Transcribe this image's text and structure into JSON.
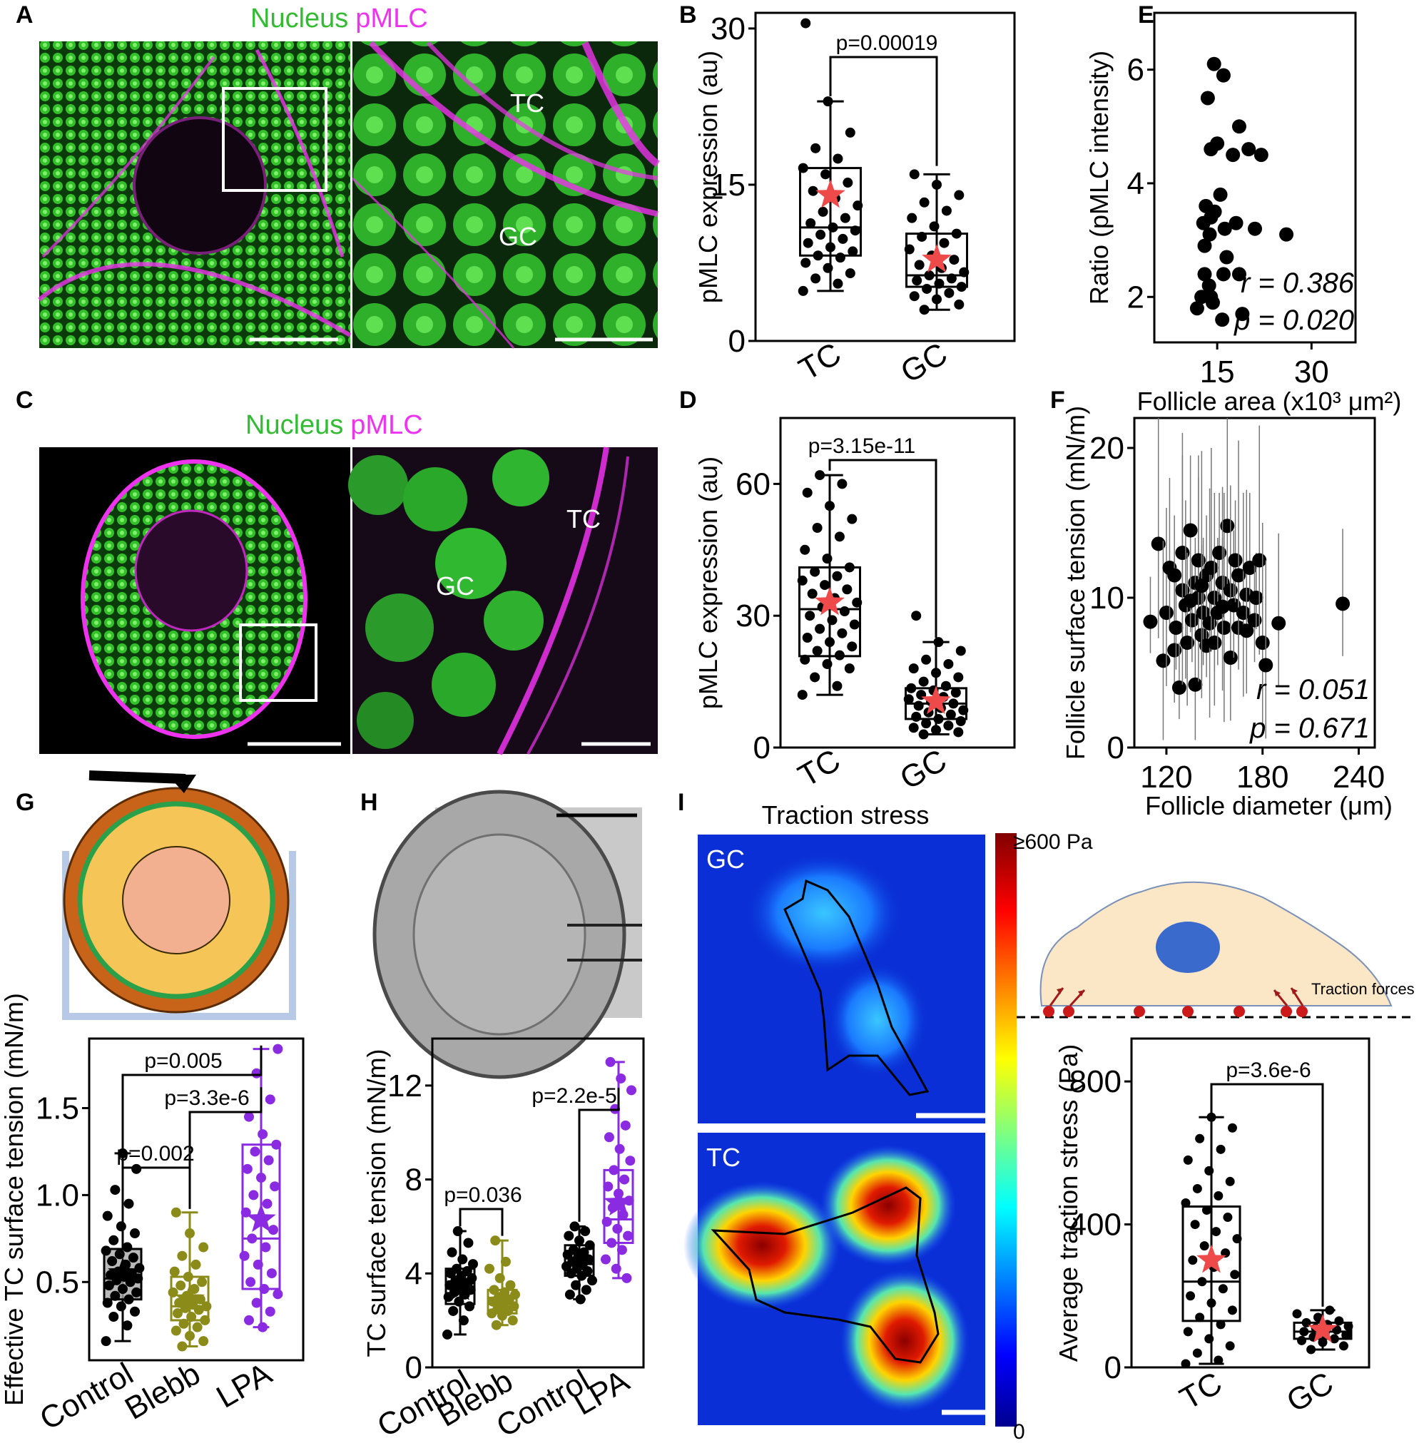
{
  "panel_letters": [
    "A",
    "B",
    "C",
    "D",
    "E",
    "F",
    "G",
    "H",
    "I"
  ],
  "micrographs": {
    "a_title_nucleus": "Nucleus",
    "a_title_pmlc": "pMLC",
    "c_title_nucleus": "Nucleus",
    "c_title_pmlc": "pMLC",
    "a_zoom_tc": "TC",
    "a_zoom_gc": "GC",
    "c_zoom_tc": "TC",
    "c_zoom_gc": "GC",
    "i_title": "Traction stress",
    "i_gc": "GC",
    "i_tc": "TC",
    "colorbar_max": "≥600 Pa",
    "colorbar_min": "0",
    "schematic_label": "Traction forces",
    "nucleus_color": "#33cc33",
    "pmlc_color": "#ee33ee"
  },
  "chart_data": [
    {
      "id": "B",
      "type": "box",
      "categories": [
        "TC",
        "GC"
      ],
      "ylabel": "pMLC expression (au)",
      "ylim": [
        0,
        31.5
      ],
      "yticks": [
        0,
        15,
        30
      ],
      "boxes": [
        {
          "q1": 8.2,
          "median": 10.9,
          "q3": 16.6,
          "min": 4.8,
          "max": 23.0,
          "mean": 14.0,
          "color": "#000000",
          "points": [
            4.8,
            5.5,
            6,
            6.5,
            7,
            7.5,
            8,
            8.2,
            8.6,
            9,
            9.4,
            9.8,
            10.2,
            10.6,
            10.9,
            11.3,
            11.8,
            12.4,
            13,
            13.7,
            14.4,
            15.2,
            16,
            16.6,
            17.5,
            18.5,
            20,
            23,
            30.5
          ]
        },
        {
          "q1": 5.2,
          "median": 6.3,
          "q3": 10.3,
          "min": 3.0,
          "max": 16.0,
          "mean": 7.8,
          "color": "#000000",
          "points": [
            3,
            3.5,
            4,
            4.3,
            4.6,
            5,
            5.2,
            5.5,
            5.8,
            6,
            6.3,
            6.6,
            7,
            7.3,
            7.8,
            8.2,
            8.8,
            9.4,
            10,
            10.3,
            11,
            11.8,
            12.5,
            13.3,
            14,
            15,
            16
          ]
        }
      ],
      "comparisons": [
        {
          "between": [
            "TC",
            "GC"
          ],
          "label": "p=0.00019"
        }
      ]
    },
    {
      "id": "D",
      "type": "box",
      "categories": [
        "TC",
        "GC"
      ],
      "ylabel": "pMLC expression (au)",
      "ylim": [
        0,
        75
      ],
      "yticks": [
        0,
        30,
        60
      ],
      "boxes": [
        {
          "q1": 20.8,
          "median": 31.5,
          "q3": 41.0,
          "min": 12.0,
          "max": 62.0,
          "mean": 33.0,
          "color": "#000000",
          "points": [
            12,
            14,
            16,
            18,
            19,
            20,
            21,
            22,
            23,
            24,
            25,
            26,
            27,
            28,
            29,
            30,
            31,
            32,
            33,
            34,
            35,
            36,
            37,
            38,
            39,
            40,
            41,
            43,
            45,
            48,
            50,
            52,
            55,
            58,
            60,
            62
          ]
        },
        {
          "q1": 6.5,
          "median": 10.0,
          "q3": 13.5,
          "min": 3.0,
          "max": 24.0,
          "mean": 10.5,
          "color": "#000000",
          "points": [
            3,
            3.5,
            4,
            4.5,
            5,
            5.5,
            6,
            6.5,
            7,
            7.5,
            8,
            8.5,
            9,
            9.5,
            10,
            10.5,
            11,
            11.5,
            12,
            12.5,
            13,
            13.5,
            14,
            15,
            16,
            17,
            18,
            19,
            20,
            22,
            24,
            30
          ]
        }
      ],
      "comparisons": [
        {
          "between": [
            "TC",
            "GC"
          ],
          "label": "p=3.15e-11"
        }
      ]
    },
    {
      "id": "E",
      "type": "scatter",
      "xlabel": "Follicle area (x10³ μm²)",
      "ylabel": "Ratio (pMLC intensity)",
      "xlim": [
        5,
        37
      ],
      "ylim": [
        1.2,
        7
      ],
      "xticks": [
        15,
        30
      ],
      "yticks": [
        2,
        4,
        6
      ],
      "points": [
        [
          14.5,
          6.1
        ],
        [
          16,
          5.9
        ],
        [
          13.5,
          5.5
        ],
        [
          18.5,
          5.0
        ],
        [
          17.5,
          4.5
        ],
        [
          20,
          4.6
        ],
        [
          22,
          4.5
        ],
        [
          14,
          4.6
        ],
        [
          15,
          4.7
        ],
        [
          13.2,
          3.6
        ],
        [
          14,
          3.4
        ],
        [
          15.5,
          3.8
        ],
        [
          12.8,
          3.3
        ],
        [
          13.8,
          3.1
        ],
        [
          16.2,
          3.2
        ],
        [
          18,
          3.3
        ],
        [
          18.5,
          2.4
        ],
        [
          16.5,
          2.7
        ],
        [
          14.6,
          3.5
        ],
        [
          13,
          2.9
        ],
        [
          13,
          2.4
        ],
        [
          12.5,
          2.0
        ],
        [
          13.7,
          2.2
        ],
        [
          14,
          2.0
        ],
        [
          14.3,
          1.9
        ],
        [
          11.8,
          1.8
        ],
        [
          15.8,
          1.6
        ],
        [
          19,
          1.7
        ],
        [
          16,
          2.4
        ],
        [
          26,
          3.1
        ],
        [
          21,
          3.2
        ]
      ],
      "annotations": [
        "r = 0.386",
        "p = 0.020"
      ]
    },
    {
      "id": "F",
      "type": "scatter",
      "xlabel": "Follicle diameter (μm)",
      "ylabel": "Follicle surface tension (mN/m)",
      "xlim": [
        100,
        250
      ],
      "ylim": [
        0,
        22
      ],
      "xticks": [
        120,
        180,
        240
      ],
      "yticks": [
        0,
        10,
        20
      ],
      "error_bars": true,
      "points": [
        [
          110,
          8.4
        ],
        [
          115,
          13.6
        ],
        [
          118,
          5.8
        ],
        [
          120,
          9.0
        ],
        [
          122,
          12.0
        ],
        [
          125,
          6.5
        ],
        [
          126,
          8.0
        ],
        [
          128,
          4.0
        ],
        [
          130,
          10.5
        ],
        [
          130,
          13.0
        ],
        [
          132,
          9.5
        ],
        [
          133,
          7.0
        ],
        [
          135,
          14.5
        ],
        [
          136,
          8.5
        ],
        [
          138,
          11.0
        ],
        [
          138,
          4.2
        ],
        [
          140,
          10.0
        ],
        [
          140,
          12.5
        ],
        [
          142,
          7.5
        ],
        [
          143,
          9.0
        ],
        [
          145,
          11.5
        ],
        [
          145,
          6.8
        ],
        [
          147,
          8.3
        ],
        [
          148,
          12.0
        ],
        [
          150,
          10.0
        ],
        [
          150,
          7.0
        ],
        [
          152,
          9.0
        ],
        [
          153,
          13.0
        ],
        [
          155,
          11.0
        ],
        [
          156,
          8.0
        ],
        [
          158,
          14.8
        ],
        [
          160,
          10.5
        ],
        [
          160,
          6.0
        ],
        [
          162,
          9.5
        ],
        [
          163,
          12.5
        ],
        [
          165,
          8.0
        ],
        [
          165,
          11.5
        ],
        [
          168,
          9.0
        ],
        [
          170,
          10.2
        ],
        [
          170,
          7.8
        ],
        [
          172,
          12.0
        ],
        [
          175,
          8.5
        ],
        [
          176,
          10.0
        ],
        [
          178,
          12.5
        ],
        [
          180,
          7.0
        ],
        [
          182,
          5.5
        ],
        [
          190,
          8.3
        ],
        [
          230,
          9.6
        ],
        [
          125,
          11.5
        ],
        [
          135,
          9.8
        ],
        [
          142,
          10.8
        ],
        [
          155,
          9.4
        ]
      ],
      "annotations": [
        "r = 0.051",
        "p = 0.671"
      ]
    },
    {
      "id": "G",
      "type": "box",
      "categories": [
        "Control",
        "Blebb",
        "LPA"
      ],
      "ylabel": "Effective TC surface tension (mN/m)",
      "ylim": [
        0.05,
        1.9
      ],
      "yticks": [
        0.5,
        1.0,
        1.5
      ],
      "boxes": [
        {
          "q1": 0.4,
          "median": 0.52,
          "q3": 0.69,
          "min": 0.16,
          "max": 1.24,
          "mean": 0.55,
          "color": "#000000",
          "points": [
            0.16,
            0.25,
            0.3,
            0.33,
            0.36,
            0.38,
            0.4,
            0.42,
            0.44,
            0.46,
            0.48,
            0.5,
            0.51,
            0.52,
            0.53,
            0.54,
            0.55,
            0.56,
            0.58,
            0.6,
            0.62,
            0.64,
            0.66,
            0.68,
            0.7,
            0.74,
            0.78,
            0.82,
            0.88,
            0.95,
            1.03,
            1.15,
            1.24
          ]
        },
        {
          "q1": 0.28,
          "median": 0.36,
          "q3": 0.53,
          "min": 0.13,
          "max": 0.9,
          "mean": 0.4,
          "color": "#8b8b1a",
          "points": [
            0.13,
            0.16,
            0.19,
            0.22,
            0.24,
            0.26,
            0.28,
            0.3,
            0.32,
            0.34,
            0.35,
            0.36,
            0.37,
            0.38,
            0.4,
            0.42,
            0.44,
            0.46,
            0.48,
            0.5,
            0.53,
            0.56,
            0.6,
            0.65,
            0.7,
            0.78,
            0.9
          ]
        },
        {
          "q1": 0.46,
          "median": 0.75,
          "q3": 1.29,
          "min": 0.24,
          "max": 1.84,
          "mean": 0.86,
          "color": "#8a2be2",
          "points": [
            0.24,
            0.28,
            0.33,
            0.38,
            0.43,
            0.46,
            0.5,
            0.55,
            0.6,
            0.65,
            0.7,
            0.75,
            0.8,
            0.85,
            0.9,
            0.95,
            1.0,
            1.05,
            1.1,
            1.15,
            1.2,
            1.25,
            1.29,
            1.35,
            1.45,
            1.55,
            1.7,
            1.84
          ]
        }
      ],
      "comparisons": [
        {
          "between": [
            "Control",
            "LPA"
          ],
          "label": "p=0.005"
        },
        {
          "between": [
            "Blebb",
            "LPA"
          ],
          "label": "p=3.3e-6"
        },
        {
          "between": [
            "Control",
            "Blebb"
          ],
          "label": "p=0.002"
        }
      ]
    },
    {
      "id": "H",
      "type": "box",
      "categories": [
        "Control",
        "Blebb",
        "Control",
        "LPA"
      ],
      "ylabel": "TC surface tension (mN/m)",
      "ylim": [
        0,
        14
      ],
      "yticks": [
        0,
        4,
        8,
        12
      ],
      "boxes": [
        {
          "q1": 2.7,
          "median": 3.4,
          "q3": 4.2,
          "min": 1.4,
          "max": 5.8,
          "mean": 3.4,
          "color": "#000000",
          "points": [
            1.4,
            2.0,
            2.4,
            2.6,
            2.8,
            3.0,
            3.1,
            3.2,
            3.3,
            3.4,
            3.5,
            3.6,
            3.7,
            3.8,
            3.9,
            4.0,
            4.1,
            4.2,
            4.4,
            4.6,
            4.9,
            5.3,
            5.8
          ]
        },
        {
          "q1": 2.3,
          "median": 2.7,
          "q3": 3.3,
          "min": 1.8,
          "max": 5.4,
          "mean": 2.8,
          "color": "#8b8b1a",
          "points": [
            1.8,
            2.0,
            2.2,
            2.3,
            2.4,
            2.5,
            2.6,
            2.7,
            2.8,
            2.9,
            3.0,
            3.1,
            3.2,
            3.3,
            3.5,
            3.8,
            4.2,
            4.5,
            5.4
          ]
        },
        {
          "q1": 3.9,
          "median": 4.4,
          "q3": 5.2,
          "min": 2.9,
          "max": 6.0,
          "mean": 4.5,
          "color": "#000000",
          "points": [
            2.9,
            3.1,
            3.3,
            3.5,
            3.7,
            3.9,
            4.0,
            4.1,
            4.2,
            4.3,
            4.4,
            4.5,
            4.6,
            4.7,
            4.8,
            4.9,
            5.0,
            5.2,
            5.4,
            5.6,
            5.8,
            6.0
          ]
        },
        {
          "q1": 5.3,
          "median": 6.3,
          "q3": 8.4,
          "min": 3.8,
          "max": 13.0,
          "mean": 7.0,
          "color": "#8a2be2",
          "points": [
            3.8,
            4.2,
            4.6,
            5.0,
            5.3,
            5.6,
            5.9,
            6.2,
            6.5,
            6.8,
            7.1,
            7.4,
            7.7,
            8.0,
            8.4,
            8.8,
            9.3,
            9.8,
            10.3,
            11.0,
            11.8,
            12.3,
            13.0
          ]
        }
      ],
      "comparisons": [
        {
          "between": [
            "Control",
            "Blebb"
          ],
          "label": "p=0.036"
        },
        {
          "between": [
            "Control",
            "LPA"
          ],
          "label": "p=2.2e-5"
        }
      ]
    },
    {
      "id": "I",
      "type": "box",
      "categories": [
        "TC",
        "GC"
      ],
      "ylabel": "Average traction stress (Pa)",
      "ylim": [
        0,
        920
      ],
      "yticks": [
        0,
        400,
        800
      ],
      "boxes": [
        {
          "q1": 130,
          "median": 240,
          "q3": 450,
          "min": 10,
          "max": 700,
          "mean": 300,
          "color": "#000000",
          "points": [
            10,
            20,
            40,
            60,
            80,
            100,
            120,
            140,
            160,
            180,
            200,
            220,
            240,
            260,
            280,
            300,
            320,
            340,
            360,
            380,
            400,
            420,
            440,
            460,
            480,
            500,
            520,
            550,
            580,
            610,
            640,
            670,
            700
          ]
        },
        {
          "q1": 80,
          "median": 100,
          "q3": 125,
          "min": 50,
          "max": 160,
          "mean": 105,
          "color": "#000000",
          "points": [
            50,
            60,
            70,
            75,
            80,
            85,
            90,
            95,
            100,
            105,
            110,
            115,
            120,
            125,
            130,
            140,
            150,
            160
          ]
        }
      ],
      "comparisons": [
        {
          "between": [
            "TC",
            "GC"
          ],
          "label": "p=3.6e-6"
        }
      ]
    }
  ]
}
